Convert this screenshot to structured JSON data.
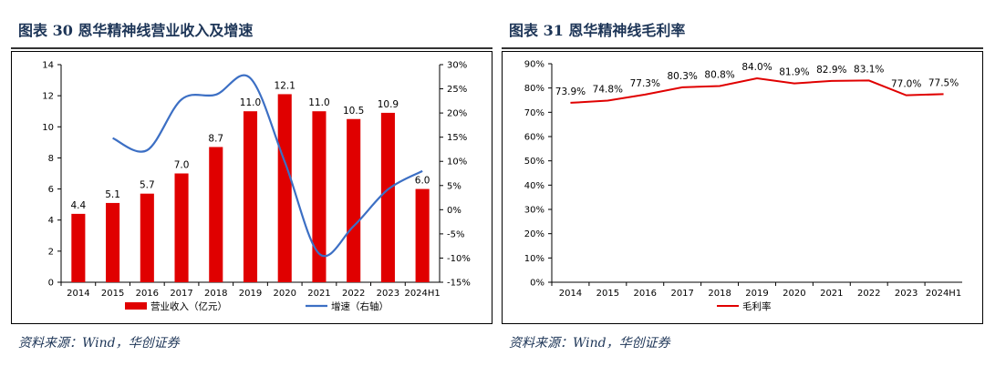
{
  "charts": [
    {
      "title": "图表 30  恩华精神线营业收入及增速",
      "source": "资料来源：Wind，华创证券"
    },
    {
      "title": "图表 31  恩华精神线毛利率",
      "source": "资料来源：Wind，华创证券"
    }
  ],
  "chart_data": [
    {
      "type": "bar",
      "categories": [
        "2014",
        "2015",
        "2016",
        "2017",
        "2018",
        "2019",
        "2020",
        "2021",
        "2022",
        "2023",
        "2024H1"
      ],
      "series": [
        {
          "name": "营业收入（亿元）",
          "type": "bar",
          "axis": "left",
          "values": [
            4.4,
            5.1,
            5.7,
            7.0,
            8.7,
            11.0,
            12.1,
            11.0,
            10.5,
            10.9,
            6.0
          ],
          "labels": [
            "4.4",
            "5.1",
            "5.7",
            "7.0",
            "8.7",
            "11.0",
            "12.1",
            "11.0",
            "10.5",
            "10.9",
            "6.0"
          ]
        },
        {
          "name": "增速（右轴）",
          "type": "line",
          "axis": "right",
          "values": [
            null,
            14.8,
            12.3,
            22.8,
            23.8,
            27.2,
            9.9,
            -9.1,
            -3.4,
            4.2,
            8.0
          ]
        }
      ],
      "ylim": [
        0,
        14
      ],
      "y2lim": [
        -15,
        30
      ],
      "yticks": [
        "0",
        "2",
        "4",
        "6",
        "8",
        "10",
        "12",
        "14"
      ],
      "y2ticks": [
        "-15%",
        "-10%",
        "-5%",
        "0%",
        "5%",
        "10%",
        "15%",
        "20%",
        "25%",
        "30%"
      ],
      "legend_position": "bottom",
      "colors": {
        "bar": "#e00000",
        "line": "#3c6fc4"
      }
    },
    {
      "type": "line",
      "categories": [
        "2014",
        "2015",
        "2016",
        "2017",
        "2018",
        "2019",
        "2020",
        "2021",
        "2022",
        "2023",
        "2024H1"
      ],
      "series": [
        {
          "name": "毛利率",
          "values": [
            73.9,
            74.8,
            77.3,
            80.3,
            80.8,
            84.0,
            81.9,
            82.9,
            83.1,
            77.0,
            77.5
          ],
          "labels": [
            "73.9%",
            "74.8%",
            "77.3%",
            "80.3%",
            "80.8%",
            "84.0%",
            "81.9%",
            "82.9%",
            "83.1%",
            "77.0%",
            "77.5%"
          ]
        }
      ],
      "ylim": [
        0,
        90
      ],
      "yticks": [
        "0%",
        "10%",
        "20%",
        "30%",
        "40%",
        "50%",
        "60%",
        "70%",
        "80%",
        "90%"
      ],
      "legend_position": "bottom",
      "colors": {
        "line": "#e00000"
      }
    }
  ]
}
